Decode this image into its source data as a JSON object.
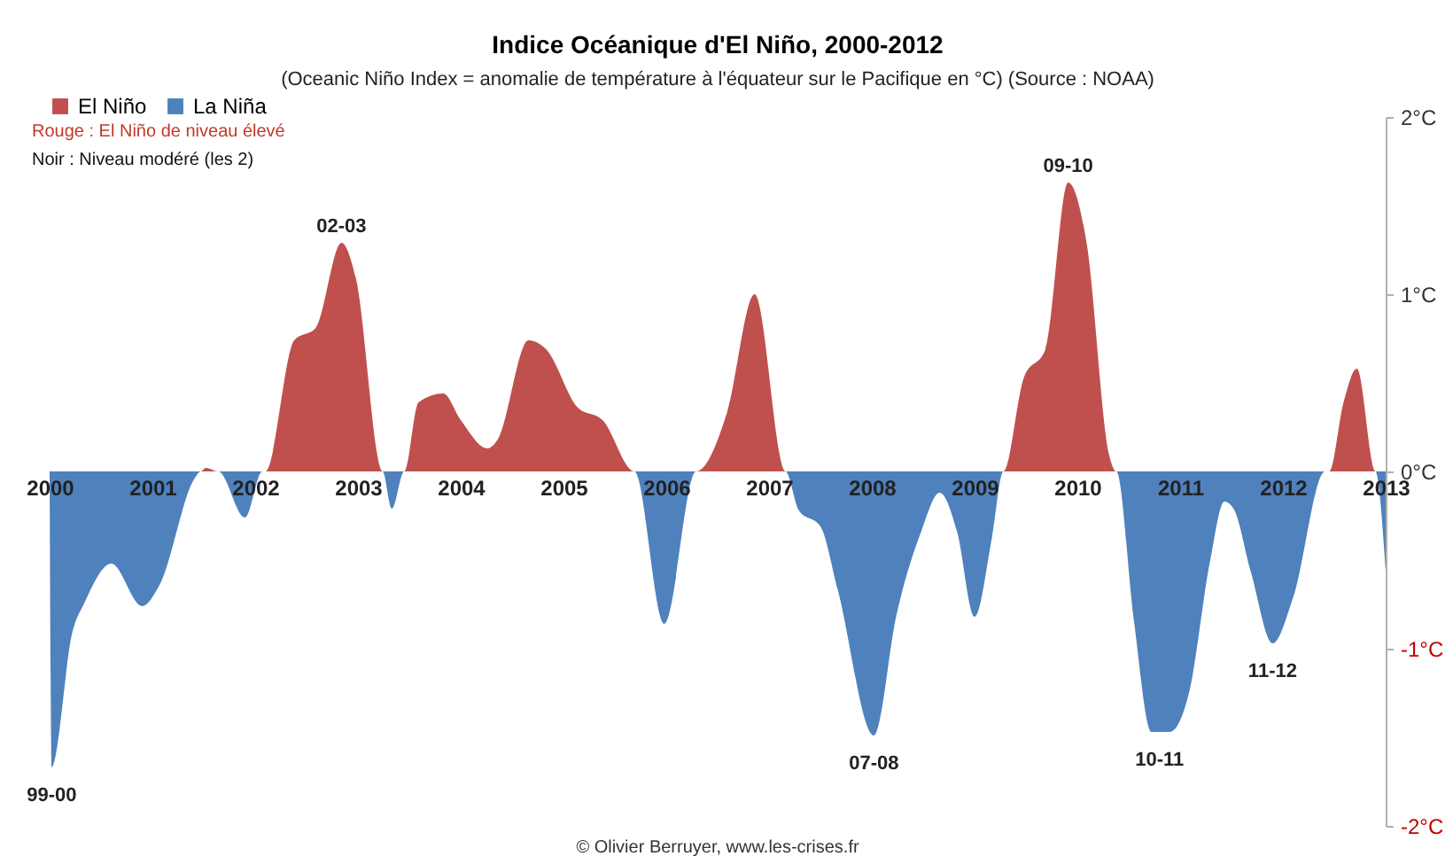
{
  "chart_data": {
    "type": "area",
    "title": "Indice Océanique d'El Niño, 2000-2012",
    "subtitle": "(Oceanic Niño Index = anomalie de température à l'équateur sur le Pacifique en °C) (Source : NOAA)",
    "series": [
      {
        "name": "El Niño",
        "color": "#c0504d",
        "x": [
          2000,
          2001.47,
          2001.52,
          2001.64,
          2002.1,
          2002.38,
          2002.59,
          2002.84,
          2002.98,
          2003.24,
          2003.45,
          2003.59,
          2003.83,
          2004.0,
          2004.26,
          2004.36,
          2004.66,
          2004.83,
          2005.14,
          2005.38,
          2005.69,
          2006.29,
          2006.59,
          2006.86,
          2007.16,
          2009.28,
          2009.48,
          2009.69,
          2009.91,
          2010.09,
          2010.31,
          2010.38,
          2012.45,
          2012.59,
          2012.72,
          2012.9,
          2013
        ],
        "values": [
          0,
          0,
          0.02,
          0,
          0,
          0.74,
          0.81,
          1.29,
          1.09,
          0,
          0,
          0.39,
          0.44,
          0.29,
          0.13,
          0.18,
          0.74,
          0.69,
          0.36,
          0.29,
          0,
          0,
          0.33,
          1.0,
          0,
          0,
          0.53,
          0.69,
          1.63,
          1.29,
          0.09,
          0,
          0,
          0.39,
          0.58,
          0,
          0
        ]
      },
      {
        "name": "La Niña",
        "color": "#4f81bd",
        "x": [
          2000,
          2000.02,
          2000.22,
          2000.34,
          2000.6,
          2000.9,
          2001.07,
          2001.41,
          2001.47,
          2001.64,
          2001.9,
          2002.07,
          2003.24,
          2003.33,
          2003.45,
          2005.69,
          2005.98,
          2006.29,
          2007.16,
          2007.29,
          2007.5,
          2007.67,
          2008.02,
          2008.24,
          2008.48,
          2008.66,
          2008.83,
          2009.0,
          2009.17,
          2009.28,
          2010.38,
          2010.55,
          2010.72,
          2010.9,
          2011.09,
          2011.29,
          2011.43,
          2011.52,
          2011.69,
          2011.9,
          2012.1,
          2012.41,
          2012.9,
          2013
        ],
        "values": [
          0,
          -1.67,
          -0.91,
          -0.74,
          -0.52,
          -0.76,
          -0.64,
          -0.04,
          0,
          0,
          -0.26,
          0,
          0,
          -0.21,
          0,
          0,
          -0.86,
          0,
          0,
          -0.22,
          -0.31,
          -0.67,
          -1.49,
          -0.81,
          -0.34,
          -0.12,
          -0.34,
          -0.82,
          -0.37,
          0,
          0,
          -0.84,
          -1.47,
          -1.47,
          -1.24,
          -0.51,
          -0.17,
          -0.21,
          -0.57,
          -0.97,
          -0.71,
          0,
          0,
          -0.56
        ]
      }
    ],
    "xlim": [
      2000,
      2013
    ],
    "xticks": [
      2000,
      2001,
      2002,
      2003,
      2004,
      2005,
      2006,
      2007,
      2008,
      2009,
      2010,
      2011,
      2012,
      2013
    ],
    "ylim": [
      -2,
      2
    ],
    "yticks": [
      {
        "value": 2,
        "label": "2°C"
      },
      {
        "value": 1,
        "label": "1°C"
      },
      {
        "value": 0,
        "label": "0°C"
      },
      {
        "value": -1,
        "label": "-1°C"
      },
      {
        "value": -2,
        "label": "-2°C"
      }
    ],
    "legend": "top",
    "annotations": [
      {
        "text": "02-03",
        "x": 2002.84,
        "y": 1.29
      },
      {
        "text": "09-10",
        "x": 2009.91,
        "y": 1.63
      },
      {
        "text": "99-00",
        "x": 2000.02,
        "y": -1.67
      },
      {
        "text": "07-08",
        "x": 2008.02,
        "y": -1.49
      },
      {
        "text": "10-11",
        "x": 2010.8,
        "y": -1.47
      },
      {
        "text": "11-12",
        "x": 2011.9,
        "y": -0.97
      },
      "Rouge : El Niño de niveau élevé",
      "Noir : Niveau modéré (les 2)",
      "© Olivier Berruyer, www.les-crises.fr"
    ]
  }
}
